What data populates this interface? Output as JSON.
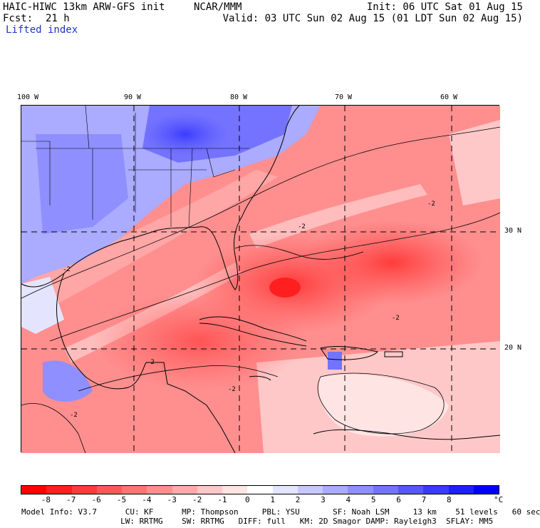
{
  "header": {
    "model_line": "HAIC-HIWC 13km ARW-GFS init",
    "org": "NCAR/MMM",
    "init": "Init: 06 UTC Sat 01 Aug 15",
    "fcst_label": "Fcst:",
    "fcst_value": "21 h",
    "valid": "Valid: 03 UTC Sun 02 Aug 15 (01 LDT Sun 02 Aug 15)",
    "field": "Lifted index"
  },
  "map": {
    "lon_labels": [
      "100 W",
      "90 W",
      "80 W",
      "70 W",
      "60 W"
    ],
    "lat_labels": [
      "30 N",
      "20 N"
    ],
    "contour_labels": [
      "-2",
      "-2",
      "-2",
      "-2",
      "-2",
      "-2",
      "-2"
    ]
  },
  "colorbar": {
    "labels": [
      "-8",
      "-7",
      "-6",
      "-5",
      "-4",
      "-3",
      "-2",
      "-1",
      "0",
      "1",
      "2",
      "3",
      "4",
      "5",
      "6",
      "7",
      "8"
    ],
    "unit": "°C",
    "colors": [
      "#ff0000",
      "#ff1f1f",
      "#ff3b3b",
      "#ff5757",
      "#ff7373",
      "#ff8f8f",
      "#ffabab",
      "#ffc8c8",
      "#ffe4e4",
      "#ffffff",
      "#e4e4ff",
      "#c8c8ff",
      "#ababff",
      "#8f8fff",
      "#7373ff",
      "#5757ff",
      "#3b3bff",
      "#1f1fff",
      "#0000ff"
    ]
  },
  "footer": {
    "line1": "Model Info: V3.7      CU: KF      MP: Thompson     PBL: YSU       SF: Noah LSM     13 km    51 levels   60 sec",
    "line2": "                     LW: RRTMG    SW: RRTMG   DIFF: full   KM: 2D Smagor DAMP: Rayleigh3  SFLAY: MM5"
  }
}
